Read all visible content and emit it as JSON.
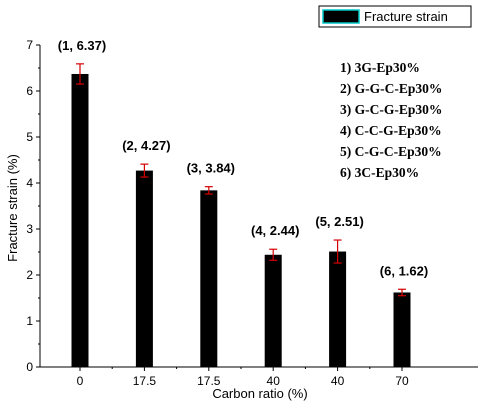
{
  "chart_data": {
    "type": "bar",
    "categories": [
      "0",
      "17.5",
      "17.5",
      "40",
      "40",
      "70"
    ],
    "values": [
      6.37,
      4.27,
      3.84,
      2.44,
      2.51,
      1.62
    ],
    "errors": [
      0.22,
      0.14,
      0.08,
      0.12,
      0.25,
      0.07
    ],
    "data_labels": [
      "(1, 6.37)",
      "(2, 4.27)",
      "(3, 3.84)",
      "(4, 2.44)",
      "(5, 2.51)",
      "(6, 1.62)"
    ],
    "series": [
      {
        "name": "Fracture strain",
        "values": [
          6.37,
          4.27,
          3.84,
          2.44,
          2.51,
          1.62
        ]
      }
    ],
    "xlabel": "Carbon ratio (%)",
    "ylabel": "Fracture strain (%)",
    "ylim": [
      0,
      7
    ],
    "yticks": [
      "0",
      "1",
      "2",
      "3",
      "4",
      "5",
      "6",
      "7"
    ],
    "legend_position": "top-right",
    "grid": false,
    "annotations": [
      "1) 3G-Ep30%",
      "2) G-G-C-Ep30%",
      "3) G-C-G-Ep30%",
      "4) C-C-G-Ep30%",
      "5) C-G-C-Ep30%",
      "6) 3C-Ep30%"
    ],
    "bar_color": "#000000",
    "error_bar_color": "#d40000",
    "legend_border_color": "#00c8c8"
  }
}
